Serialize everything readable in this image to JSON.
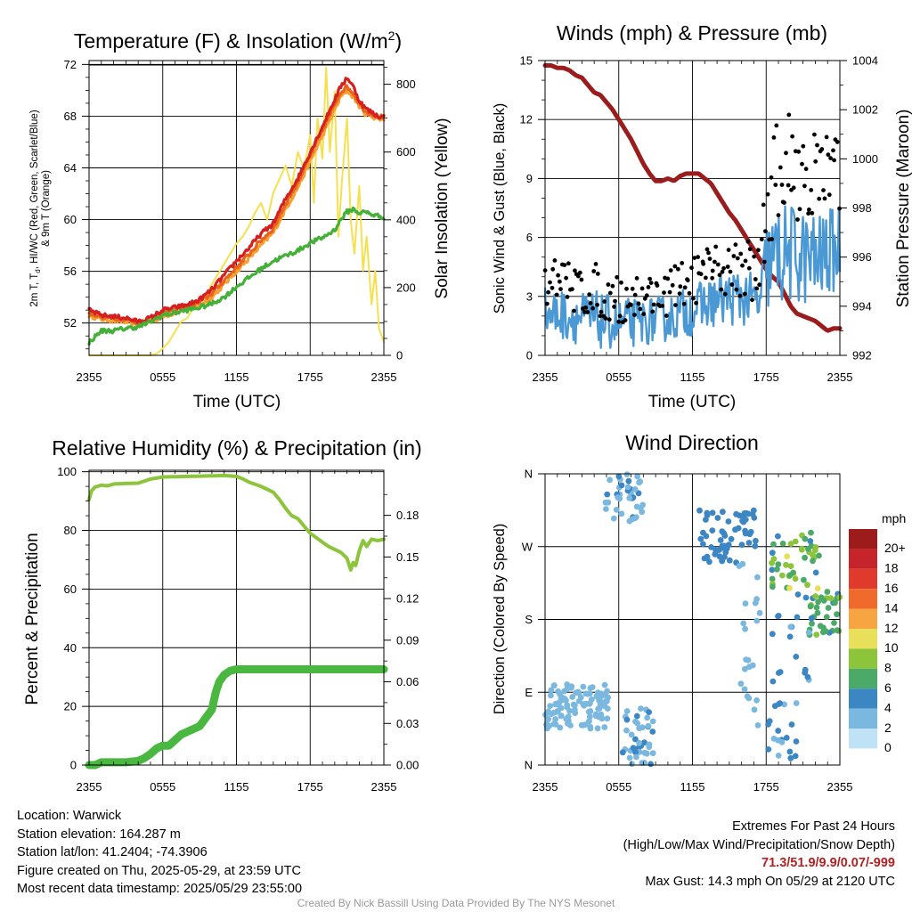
{
  "chart_data": [
    {
      "type": "line",
      "title": "Temperature (F) & Insolation (W/m",
      "title_sup": "2",
      "title_close": ")",
      "xlabel": "Time (UTC)",
      "ylabel_lines": [
        "2m T, T",
        "d",
        ", HI/WC (Red, Green, Scarlet/Blue)",
        "& 9m T (Orange)"
      ],
      "ylabel_right": "Solar Insolation (Yellow)",
      "x_ticks": [
        "2355",
        "0555",
        "1155",
        "1755",
        "2355"
      ],
      "y_ticks": [
        52,
        56,
        60,
        64,
        68,
        72
      ],
      "y2_ticks": [
        0,
        200,
        400,
        600,
        800
      ],
      "ylim": [
        49.5,
        72.3
      ],
      "y2lim": [
        0,
        870
      ],
      "x_hours": [
        0,
        24
      ],
      "colors": {
        "temp": "#d62020",
        "dew": "#44b038",
        "hiwc": "#e8641c",
        "t9m": "#f5a030",
        "solar": "#f5e050"
      },
      "series": [
        {
          "color_key": "solar",
          "x": [
            0,
            4,
            5,
            5.5,
            6,
            6.5,
            7,
            7.5,
            8,
            8.5,
            9,
            9.5,
            10,
            10.5,
            11,
            11.5,
            12,
            12.5,
            13,
            13.5,
            14,
            14.5,
            15,
            15.5,
            16,
            16.5,
            17,
            17.5,
            18,
            18.3,
            18.6,
            19,
            19.3,
            19.6,
            20,
            20.3,
            20.6,
            21,
            21.3,
            21.6,
            22,
            22.3,
            22.6,
            23,
            23.3,
            23.6,
            24
          ],
          "values": [
            0,
            0,
            0,
            5,
            20,
            40,
            70,
            100,
            110,
            140,
            160,
            180,
            210,
            240,
            270,
            300,
            330,
            350,
            380,
            420,
            450,
            400,
            480,
            520,
            560,
            500,
            600,
            550,
            650,
            450,
            700,
            580,
            850,
            600,
            780,
            350,
            520,
            700,
            400,
            300,
            500,
            250,
            350,
            150,
            250,
            80,
            40
          ]
        },
        {
          "color_key": "t9m",
          "x": [
            0,
            1,
            2,
            3,
            4,
            5,
            6,
            7,
            8,
            9,
            10,
            11,
            12,
            13,
            14,
            15,
            16,
            17,
            18,
            19,
            20,
            20.5,
            21,
            21.5,
            22,
            22.5,
            23,
            23.5,
            24
          ],
          "values": [
            52.6,
            52.3,
            52.2,
            52.1,
            51.9,
            52.1,
            52.5,
            52.8,
            53.1,
            53.4,
            54.0,
            55.0,
            56.0,
            57.0,
            58.0,
            59.0,
            60.8,
            62.5,
            64.5,
            66.5,
            68.5,
            69.5,
            70.0,
            69.5,
            68.8,
            68.2,
            68.0,
            67.8,
            67.8
          ]
        },
        {
          "color_key": "hiwc",
          "x": [
            0,
            1,
            2,
            3,
            4,
            5,
            6,
            7,
            8,
            9,
            10,
            11,
            12,
            13,
            14,
            15,
            16,
            17,
            18,
            19,
            20,
            20.5,
            21,
            21.5,
            22,
            22.5,
            23,
            23.5,
            24
          ],
          "values": [
            52.8,
            52.5,
            52.4,
            52.3,
            52.0,
            52.3,
            52.8,
            53.1,
            53.3,
            53.6,
            54.3,
            55.3,
            56.3,
            57.3,
            58.4,
            59.3,
            61.2,
            62.9,
            64.9,
            66.9,
            68.9,
            69.9,
            70.3,
            69.8,
            69.0,
            68.4,
            68.2,
            68.0,
            67.9
          ]
        },
        {
          "color_key": "temp",
          "x": [
            0,
            1,
            2,
            3,
            4,
            5,
            6,
            7,
            8,
            9,
            10,
            11,
            12,
            13,
            14,
            15,
            16,
            17,
            18,
            19,
            20,
            20.5,
            21,
            21.5,
            22,
            22.5,
            23,
            23.5,
            24
          ],
          "values": [
            53.0,
            52.6,
            52.5,
            52.4,
            52.1,
            52.4,
            53.0,
            53.2,
            53.4,
            53.8,
            54.6,
            55.7,
            56.8,
            57.8,
            58.9,
            59.7,
            61.6,
            63.2,
            65.2,
            67.2,
            69.3,
            70.3,
            71.0,
            70.3,
            69.2,
            68.6,
            68.3,
            68.0,
            67.9
          ]
        },
        {
          "color_key": "dew",
          "x": [
            0,
            1,
            2,
            3,
            4,
            5,
            6,
            7,
            8,
            9,
            10,
            11,
            12,
            13,
            14,
            15,
            16,
            17,
            18,
            19,
            20,
            20.5,
            21,
            21.5,
            22,
            22.5,
            23,
            23.5,
            24
          ],
          "values": [
            50.5,
            51.4,
            51.4,
            51.6,
            51.7,
            52.1,
            52.6,
            52.8,
            53.0,
            53.2,
            53.5,
            54.0,
            54.8,
            55.5,
            56.2,
            56.8,
            57.2,
            57.6,
            58.2,
            58.6,
            59.2,
            60.0,
            60.6,
            60.8,
            60.5,
            60.6,
            60.4,
            60.3,
            60.2
          ]
        }
      ]
    },
    {
      "type": "line",
      "title": "Winds (mph) & Pressure (mb)",
      "xlabel": "Time (UTC)",
      "ylabel": "Sonic Wind & Gust (Blue, Black)",
      "ylabel_right": "Station Pressure (Maroon)",
      "x_ticks": [
        "2355",
        "0555",
        "1155",
        "1755",
        "2355"
      ],
      "y_ticks": [
        0,
        3,
        6,
        9,
        12,
        15
      ],
      "y2_ticks": [
        992,
        994,
        996,
        998,
        1000,
        1002,
        1004
      ],
      "ylim": [
        0,
        15
      ],
      "y2lim": [
        992,
        1004
      ],
      "x_hours": [
        0,
        24
      ],
      "colors": {
        "wind": "#4a98d4",
        "gust": "#000000",
        "pressure": "#9b1c1c"
      },
      "series": [
        {
          "color_key": "pressure",
          "x": [
            0,
            0.5,
            1,
            1.5,
            2,
            2.5,
            3,
            3.5,
            4,
            4.5,
            5,
            5.5,
            6,
            6.5,
            7,
            7.5,
            8,
            8.5,
            9,
            9.5,
            10,
            10.5,
            11,
            11.5,
            12,
            12.5,
            13,
            13.5,
            14,
            14.5,
            15,
            15.5,
            16,
            16.5,
            17,
            17.5,
            18,
            18.5,
            19,
            19.5,
            20,
            20.5,
            21,
            21.5,
            22,
            22.5,
            23,
            23.5,
            24
          ],
          "values": [
            1003.8,
            1003.8,
            1003.7,
            1003.7,
            1003.6,
            1003.4,
            1003.3,
            1003.0,
            1002.7,
            1002.6,
            1002.3,
            1002.0,
            1001.6,
            1001.2,
            1000.8,
            1000.3,
            999.8,
            999.4,
            999.1,
            999.1,
            999.2,
            999.1,
            999.3,
            999.4,
            999.4,
            999.4,
            999.2,
            999.0,
            998.6,
            998.2,
            997.8,
            997.5,
            997.1,
            996.7,
            996.3,
            995.9,
            995.5,
            995.2,
            995.0,
            994.5,
            994.0,
            993.7,
            993.6,
            993.5,
            993.4,
            993.2,
            993.0,
            993.1,
            993.1
          ]
        },
        {
          "color_key": "wind",
          "mode": "noisy-line",
          "points": 280,
          "x": [
            0,
            2,
            4,
            6,
            8,
            10,
            12,
            14,
            16,
            17.5,
            18,
            19,
            20,
            21,
            22,
            23,
            24
          ],
          "values": [
            2.2,
            2.0,
            1.8,
            1.6,
            1.7,
            1.9,
            2.3,
            2.8,
            3.0,
            2.6,
            4.5,
            5.0,
            5.2,
            5.0,
            4.8,
            5.2,
            5.5
          ],
          "noise": [
            1.3,
            1.3,
            1.5,
            1.3,
            1.2,
            1.2,
            1.3,
            1.3,
            1.5,
            1.3,
            2.4,
            2.6,
            2.6,
            2.5,
            2.4,
            2.2,
            2.2
          ]
        },
        {
          "color_key": "gust",
          "mode": "scatter",
          "points": 190,
          "x": [
            0,
            2,
            4,
            6,
            8,
            10,
            12,
            14,
            16,
            17.5,
            18,
            19,
            20,
            21,
            22,
            23,
            24
          ],
          "values": [
            3.8,
            3.5,
            3.3,
            2.8,
            3.0,
            3.2,
            3.8,
            4.3,
            4.6,
            4.0,
            7.8,
            9.3,
            9.8,
            9.5,
            9.0,
            9.2,
            9.0
          ],
          "noise": [
            1.3,
            1.3,
            1.4,
            1.2,
            1.2,
            1.2,
            1.3,
            1.3,
            1.6,
            1.5,
            2.6,
            2.8,
            2.8,
            2.7,
            2.5,
            2.2,
            2.0
          ]
        }
      ]
    },
    {
      "type": "line",
      "title": "Relative Humidity (%) & Precipitation (in)",
      "ylabel": "Percent & Precipitation",
      "x_ticks": [
        "2355",
        "0555",
        "1155",
        "1755",
        "2355"
      ],
      "y_ticks": [
        0,
        20,
        40,
        60,
        80,
        100
      ],
      "y2_ticks": [
        "0.00",
        "0.03",
        "0.06",
        "0.09",
        "0.12",
        "0.15",
        "0.18"
      ],
      "y2_tick_values": [
        0,
        0.03,
        0.06,
        0.09,
        0.12,
        0.15,
        0.18
      ],
      "ylim": [
        0,
        100.5
      ],
      "y2lim": [
        0,
        0.2125
      ],
      "x_hours": [
        0,
        24
      ],
      "colors": {
        "rh": "#8cc43c",
        "precip": "#4ab840"
      },
      "series": [
        {
          "color_key": "rh",
          "x": [
            0,
            0.2,
            0.5,
            1,
            1.5,
            2,
            3,
            4,
            5,
            6,
            7,
            8,
            9,
            10,
            11,
            12,
            12.5,
            13,
            14,
            15,
            15.5,
            16,
            16.5,
            17,
            17.5,
            18,
            18.5,
            19,
            19.5,
            20,
            20.5,
            21,
            21.3,
            21.5,
            21.7,
            22,
            22.3,
            22.6,
            23,
            23.5,
            24
          ],
          "values": [
            90.5,
            93.5,
            94.8,
            95.4,
            95.2,
            95.8,
            96.0,
            96.1,
            97.5,
            98.2,
            98.3,
            98.4,
            98.5,
            98.6,
            98.7,
            98.4,
            97.6,
            96.5,
            95.0,
            93.0,
            90.5,
            87.5,
            85.0,
            84.0,
            81.5,
            79.0,
            77.5,
            76.0,
            74.5,
            73.5,
            72.5,
            70.5,
            66.5,
            69.0,
            68.0,
            73.0,
            76.5,
            74.5,
            77.0,
            76.5,
            77.0
          ]
        },
        {
          "color_key": "precip",
          "x": [
            0,
            0.5,
            1,
            2,
            3,
            4,
            4.5,
            5,
            5.5,
            6,
            6.5,
            7,
            7.5,
            8,
            8.5,
            9,
            9.5,
            10,
            10.3,
            10.6,
            11,
            11.5,
            12,
            13,
            14,
            15,
            16,
            17,
            18,
            19,
            20,
            21,
            22,
            23,
            24
          ],
          "values": [
            0,
            0,
            0.002,
            0.002,
            0.002,
            0.003,
            0.005,
            0.008,
            0.012,
            0.014,
            0.014,
            0.018,
            0.022,
            0.024,
            0.026,
            0.028,
            0.034,
            0.04,
            0.052,
            0.06,
            0.065,
            0.068,
            0.069,
            0.069,
            0.069,
            0.069,
            0.069,
            0.069,
            0.069,
            0.069,
            0.069,
            0.069,
            0.069,
            0.069,
            0.069
          ]
        }
      ]
    },
    {
      "type": "scatter",
      "title": "Wind Direction",
      "ylabel": "Direction (Colored By Speed)",
      "x_ticks": [
        "2355",
        "0555",
        "1155",
        "1755",
        "2355"
      ],
      "y_ticks": [
        "N",
        "E",
        "S",
        "W",
        "N"
      ],
      "ylim": [
        0,
        360
      ],
      "x_hours": [
        0,
        24
      ],
      "colorbar": {
        "title": "mph",
        "labels": [
          "20+",
          "18",
          "16",
          "14",
          "12",
          "10",
          "8",
          "6",
          "4",
          "2",
          "0"
        ],
        "colors": [
          "#9e1b1b",
          "#c4242a",
          "#e03a2c",
          "#f06a2c",
          "#f7a443",
          "#e8e05a",
          "#8cc43c",
          "#4caa68",
          "#3c86c4",
          "#7ab8e0",
          "#bfe2f6"
        ]
      },
      "clusters": [
        {
          "x": [
            0,
            5.2
          ],
          "dir": [
            45,
            100
          ],
          "speeds": [
            1,
            3
          ],
          "points": 110
        },
        {
          "x": [
            6.3,
            8.8
          ],
          "dir": [
            0,
            70
          ],
          "speeds": [
            1,
            4
          ],
          "points": 40
        },
        {
          "x": [
            4.8,
            8.2
          ],
          "dir": [
            300,
            360
          ],
          "speeds": [
            1,
            4
          ],
          "points": 40
        },
        {
          "x": [
            12.5,
            17.3
          ],
          "dir": [
            250,
            315
          ],
          "speeds": [
            3,
            5
          ],
          "points": 60
        },
        {
          "x": [
            15.8,
            17.5
          ],
          "dir": [
            30,
            250
          ],
          "speeds": [
            1,
            3
          ],
          "points": 22
        },
        {
          "x": [
            18.0,
            21.0
          ],
          "dir": [
            0,
            80
          ],
          "speeds": [
            2,
            5
          ],
          "points": 20
        },
        {
          "x": [
            18.2,
            22.3
          ],
          "dir": [
            215,
            290
          ],
          "speeds": [
            4,
            10
          ],
          "points": 45
        },
        {
          "x": [
            21.5,
            24
          ],
          "dir": [
            160,
            215
          ],
          "speeds": [
            4,
            8
          ],
          "points": 35
        },
        {
          "x": [
            18.5,
            21.5
          ],
          "dir": [
            90,
            220
          ],
          "speeds": [
            2,
            5
          ],
          "points": 18
        }
      ]
    }
  ],
  "station": {
    "location": "Location: Warwick",
    "elevation": "Station elevation: 164.287 m",
    "latlon": "Station lat/lon: 41.2404; -74.3906",
    "created": "Figure created on Thu, 2025-05-29, at 23:59 UTC",
    "recent": "Most recent data timestamp: 2025/05/29 23:55:00"
  },
  "extremes": {
    "title": "Extremes For Past 24 Hours",
    "subtitle": "(High/Low/Max Wind/Precipitation/Snow Depth)",
    "values": "71.3/51.9/9.9/0.07/-999",
    "gust": "Max Gust: 14.3 mph On 05/29 at 2120 UTC"
  },
  "credit": "Created By Nick Bassill Using Data Provided By The NYS Mesonet"
}
